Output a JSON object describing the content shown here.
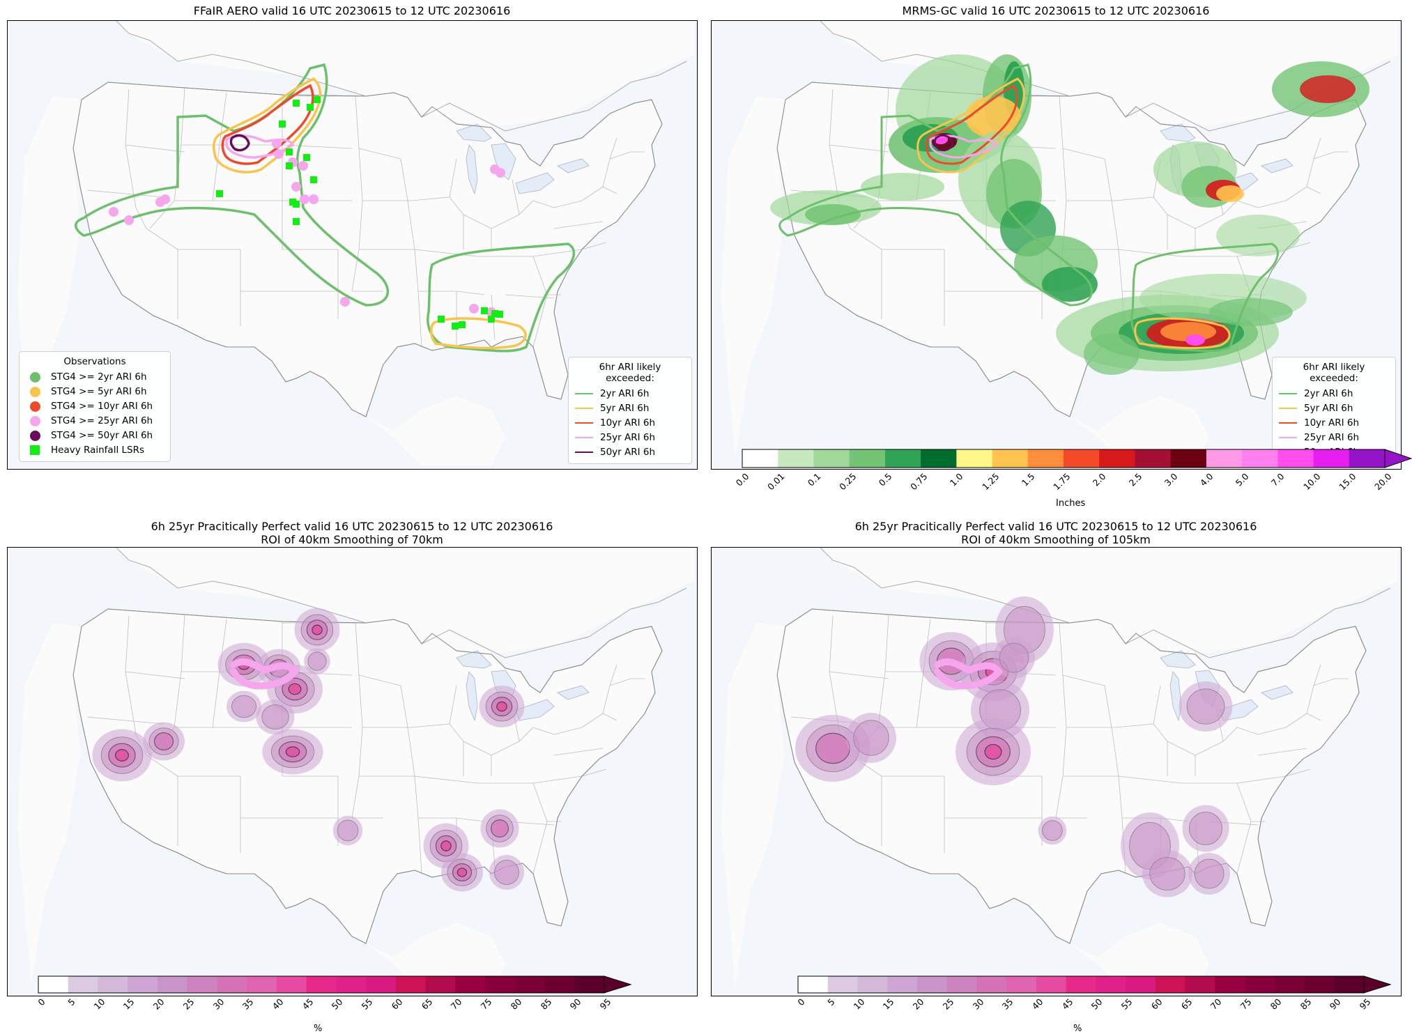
{
  "panels": [
    {
      "id": "p1",
      "title": "FFaIR AERO valid 16 UTC 20230615 to 12 UTC 20230616"
    },
    {
      "id": "p2",
      "title": "MRMS-GC valid 16 UTC 20230615 to 12 UTC 20230616"
    },
    {
      "id": "p3",
      "title": "6h 25yr Pracitically Perfect valid 16 UTC 20230615 to 12 UTC 20230616",
      "subtitle": "ROI of 40km Smoothing of 70km"
    },
    {
      "id": "p4",
      "title": "6h 25yr Pracitically Perfect valid 16 UTC 20230615 to 12 UTC 20230616",
      "subtitle": "ROI of 40km Smoothing of 105km"
    }
  ],
  "observations_legend": {
    "title": "Observations",
    "items": [
      {
        "label": "STG4 >= 2yr ARI 6h",
        "color": "#6cc06c",
        "marker": "circle"
      },
      {
        "label": "STG4 >= 5yr ARI 6h",
        "color": "#f8c44c",
        "marker": "circle"
      },
      {
        "label": "STG4 >= 10yr ARI 6h",
        "color": "#ec4a2a",
        "marker": "circle"
      },
      {
        "label": "STG4 >= 25yr ARI 6h",
        "color": "#f6a6ec",
        "marker": "circle"
      },
      {
        "label": "STG4 >= 50yr ARI 6h",
        "color": "#6a0a5a",
        "marker": "circle"
      },
      {
        "label": "Heavy Rainfall LSRs",
        "color": "#11ee11",
        "marker": "square"
      }
    ]
  },
  "ari_legend": {
    "title": "6hr ARI likely exceeded:",
    "items": [
      {
        "label": "2yr ARI 6h",
        "color": "#6cc06c"
      },
      {
        "label": "5yr ARI 6h",
        "color": "#f8c44c"
      },
      {
        "label": "10yr ARI 6h",
        "color": "#ec4a2a"
      },
      {
        "label": "25yr ARI 6h",
        "color": "#f6a6ec"
      },
      {
        "label": "50yr ARI 6h",
        "color": "#6a0a5a"
      }
    ]
  },
  "precip_colorbar": {
    "unit": "Inches",
    "ticks": [
      "0.0",
      "0.01",
      "0.1",
      "0.25",
      "0.5",
      "0.75",
      "1.0",
      "1.25",
      "1.5",
      "1.75",
      "2.0",
      "2.5",
      "3.0",
      "4.0",
      "5.0",
      "7.0",
      "10.0",
      "15.0",
      "20.0"
    ],
    "colors": [
      "#ffffff",
      "#c7e9c0",
      "#a1d99b",
      "#74c476",
      "#31a354",
      "#006d2c",
      "#fff78a",
      "#fec44f",
      "#fe8d3c",
      "#f34a2a",
      "#d7191c",
      "#a50f33",
      "#6b0010",
      "#ff9be6",
      "#ff80ee",
      "#ff4dee",
      "#e61ef0",
      "#9614c8"
    ],
    "extend_color": "#9614c8"
  },
  "prob_colorbar": {
    "unit": "%",
    "ticks": [
      "0",
      "5",
      "10",
      "15",
      "20",
      "25",
      "30",
      "35",
      "40",
      "45",
      "50",
      "55",
      "60",
      "65",
      "70",
      "75",
      "80",
      "85",
      "90",
      "95"
    ],
    "colors": [
      "#ffffff",
      "#dcc9e2",
      "#d4b9da",
      "#cda6d3",
      "#c994c7",
      "#cd83bf",
      "#d473b5",
      "#df65b0",
      "#e54ba2",
      "#e7298a",
      "#e0218a",
      "#d91a80",
      "#ce1256",
      "#b20c4f",
      "#980043",
      "#87003c",
      "#7a0036",
      "#6a0030",
      "#5a002a"
    ],
    "extend_color": "#5a002a"
  }
}
